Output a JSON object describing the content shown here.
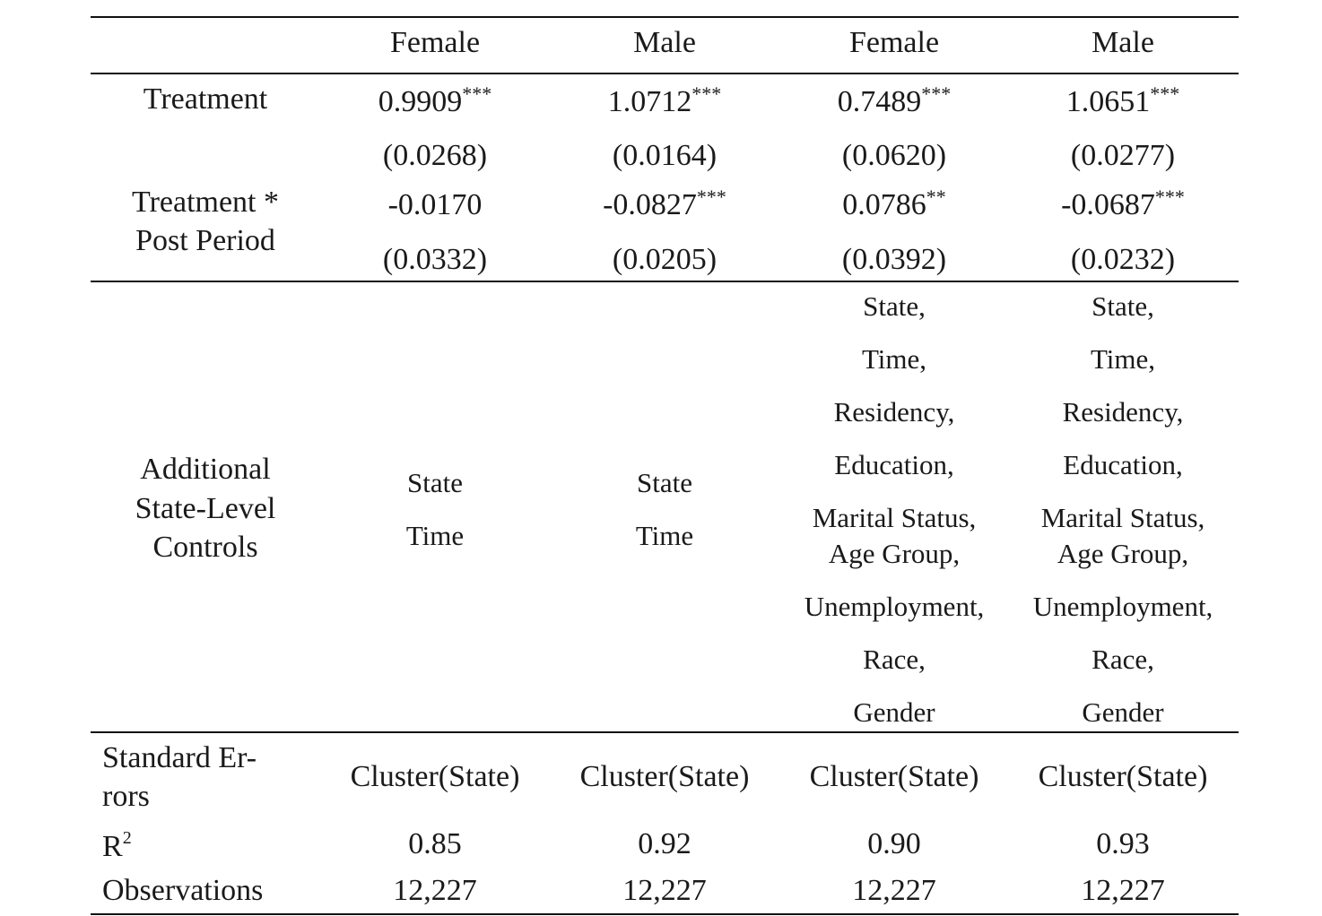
{
  "columns": [
    "Female",
    "Male",
    "Female",
    "Male"
  ],
  "rows": {
    "treatment": {
      "label": "Treatment",
      "coef": [
        "0.9909",
        "1.0712",
        "0.7489",
        "1.0651"
      ],
      "stars": [
        "***",
        "***",
        "***",
        "***"
      ],
      "se": [
        "(0.0268)",
        "(0.0164)",
        "(0.0620)",
        "(0.0277)"
      ]
    },
    "interaction": {
      "label_line1": "Treatment *",
      "label_line2": "Post Period",
      "coef": [
        "-0.0170",
        "-0.0827",
        "0.0786",
        "-0.0687"
      ],
      "stars": [
        "",
        "***",
        "**",
        "***"
      ],
      "se": [
        "(0.0332)",
        "(0.0205)",
        "(0.0392)",
        "(0.0232)"
      ]
    },
    "controls": {
      "label_line1": "Additional",
      "label_line2": "State-Level",
      "label_line3": "Controls",
      "basic": [
        "State",
        "Time"
      ],
      "full": [
        "State,",
        "Time,",
        "Residency,",
        "Education,",
        "Marital Status,",
        "Age Group,",
        "Unemployment,",
        "Race,",
        "Gender"
      ]
    },
    "std_errors": {
      "label_line1": "Standard Er-",
      "label_line2": "rors",
      "values": [
        "Cluster(State)",
        "Cluster(State)",
        "Cluster(State)",
        "Cluster(State)"
      ]
    },
    "r2": {
      "label": "R",
      "label_sup": "2",
      "values": [
        "0.85",
        "0.92",
        "0.90",
        "0.93"
      ]
    },
    "observations": {
      "label": "Observations",
      "values": [
        "12,227",
        "12,227",
        "12,227",
        "12,227"
      ]
    }
  }
}
